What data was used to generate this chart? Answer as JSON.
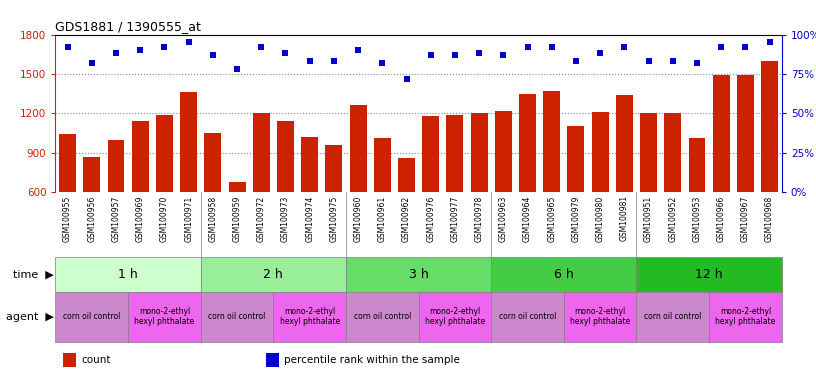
{
  "title": "GDS1881 / 1390555_at",
  "samples": [
    "GSM100955",
    "GSM100956",
    "GSM100957",
    "GSM100969",
    "GSM100970",
    "GSM100971",
    "GSM100958",
    "GSM100959",
    "GSM100972",
    "GSM100973",
    "GSM100974",
    "GSM100975",
    "GSM100960",
    "GSM100961",
    "GSM100962",
    "GSM100976",
    "GSM100977",
    "GSM100978",
    "GSM100963",
    "GSM100964",
    "GSM100965",
    "GSM100979",
    "GSM100980",
    "GSM100981",
    "GSM100951",
    "GSM100952",
    "GSM100953",
    "GSM100966",
    "GSM100967",
    "GSM100968"
  ],
  "counts": [
    1040,
    865,
    1000,
    1140,
    1190,
    1360,
    1050,
    680,
    1200,
    1140,
    1020,
    960,
    1260,
    1010,
    860,
    1180,
    1190,
    1200,
    1220,
    1350,
    1370,
    1100,
    1210,
    1340,
    1200,
    1200,
    1010,
    1490,
    1490,
    1600
  ],
  "percentile_ranks": [
    92,
    82,
    88,
    90,
    92,
    95,
    87,
    78,
    92,
    88,
    83,
    83,
    90,
    82,
    72,
    87,
    87,
    88,
    87,
    92,
    92,
    83,
    88,
    92,
    83,
    83,
    82,
    92,
    92,
    95
  ],
  "ylim_left": [
    600,
    1800
  ],
  "ylim_right": [
    0,
    100
  ],
  "yticks_left": [
    600,
    900,
    1200,
    1500,
    1800
  ],
  "yticks_right": [
    0,
    25,
    50,
    75,
    100
  ],
  "bar_color": "#cc2200",
  "dot_color": "#0000cc",
  "time_groups": [
    {
      "label": "1 h",
      "start": 0,
      "end": 6,
      "color": "#ccffcc"
    },
    {
      "label": "2 h",
      "start": 6,
      "end": 12,
      "color": "#99ee99"
    },
    {
      "label": "3 h",
      "start": 12,
      "end": 18,
      "color": "#66dd66"
    },
    {
      "label": "6 h",
      "start": 18,
      "end": 24,
      "color": "#44cc44"
    },
    {
      "label": "12 h",
      "start": 24,
      "end": 30,
      "color": "#22bb22"
    }
  ],
  "agent_groups": [
    {
      "label": "corn oil control",
      "start": 0,
      "end": 3,
      "color": "#cc88cc"
    },
    {
      "label": "mono-2-ethyl\nhexyl phthalate",
      "start": 3,
      "end": 6,
      "color": "#ee66ee"
    },
    {
      "label": "corn oil control",
      "start": 6,
      "end": 9,
      "color": "#cc88cc"
    },
    {
      "label": "mono-2-ethyl\nhexyl phthalate",
      "start": 9,
      "end": 12,
      "color": "#ee66ee"
    },
    {
      "label": "corn oil control",
      "start": 12,
      "end": 15,
      "color": "#cc88cc"
    },
    {
      "label": "mono-2-ethyl\nhexyl phthalate",
      "start": 15,
      "end": 18,
      "color": "#ee66ee"
    },
    {
      "label": "corn oil control",
      "start": 18,
      "end": 21,
      "color": "#cc88cc"
    },
    {
      "label": "mono-2-ethyl\nhexyl phthalate",
      "start": 21,
      "end": 24,
      "color": "#ee66ee"
    },
    {
      "label": "corn oil control",
      "start": 24,
      "end": 27,
      "color": "#cc88cc"
    },
    {
      "label": "mono-2-ethyl\nhexyl phthalate",
      "start": 27,
      "end": 30,
      "color": "#ee66ee"
    }
  ],
  "legend_items": [
    {
      "label": "count",
      "color": "#cc2200"
    },
    {
      "label": "percentile rank within the sample",
      "color": "#0000cc"
    }
  ],
  "bg_color": "#ffffff",
  "grid_color": "#888888",
  "xtick_bg": "#dddddd"
}
